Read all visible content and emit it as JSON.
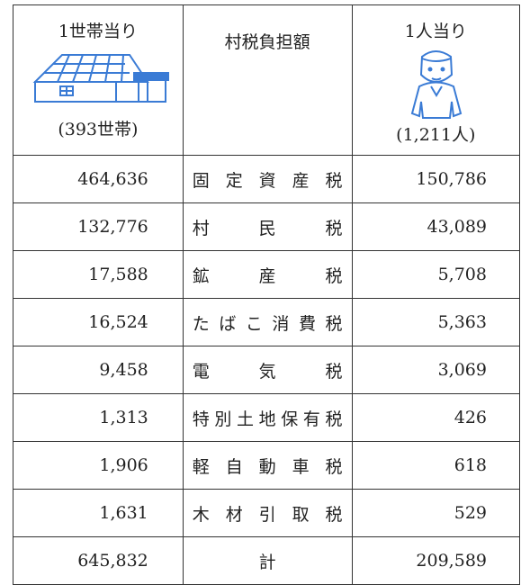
{
  "header": {
    "household_title": "1世帯当り",
    "household_count": "(393世帯)",
    "middle_title": "村税負担額",
    "person_title": "1人当り",
    "person_count": "(1,211人)"
  },
  "table": {
    "rows": [
      [
        "464,636",
        "固定資産税",
        "150,786"
      ],
      [
        "132,776",
        "村民税",
        "43,089"
      ],
      [
        "17,588",
        "鉱産税",
        "5,708"
      ],
      [
        "16,524",
        "たばこ消費税",
        "5,363"
      ],
      [
        "9,458",
        "電気税",
        "3,069"
      ],
      [
        "1,313",
        "特別土地保有税",
        "426"
      ],
      [
        "1,906",
        "軽自動車税",
        "618"
      ],
      [
        "1,631",
        "木材引取税",
        "529"
      ],
      [
        "645,832",
        "計",
        "209,589"
      ]
    ]
  }
}
